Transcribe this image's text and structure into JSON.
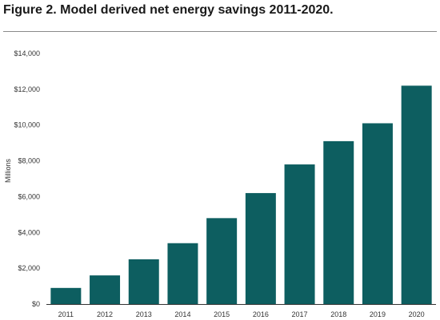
{
  "header": {
    "title": "Figure 2. Model derived net energy savings 2011-2020."
  },
  "colors": {
    "bar": "#0d5e60",
    "axis": "#333333",
    "grid": "#cfcfcf"
  },
  "chart_data": {
    "type": "bar",
    "title": "Figure 2. Model derived net energy savings 2011-2020.",
    "xlabel": "",
    "ylabel": "Millions",
    "categories": [
      "2011",
      "2012",
      "2013",
      "2014",
      "2015",
      "2016",
      "2017",
      "2018",
      "2019",
      "2020"
    ],
    "values": [
      900,
      1600,
      2500,
      3400,
      4800,
      6200,
      7800,
      9100,
      10100,
      12200
    ],
    "ylim": [
      0,
      14000
    ],
    "yticks": [
      0,
      2000,
      4000,
      6000,
      8000,
      10000,
      12000,
      14000
    ],
    "ytick_labels": [
      "$0",
      "$2,000",
      "$4,000",
      "$6,000",
      "$8,000",
      "$10,000",
      "$12,000",
      "$14,000"
    ],
    "grid": false,
    "legend": "none"
  }
}
